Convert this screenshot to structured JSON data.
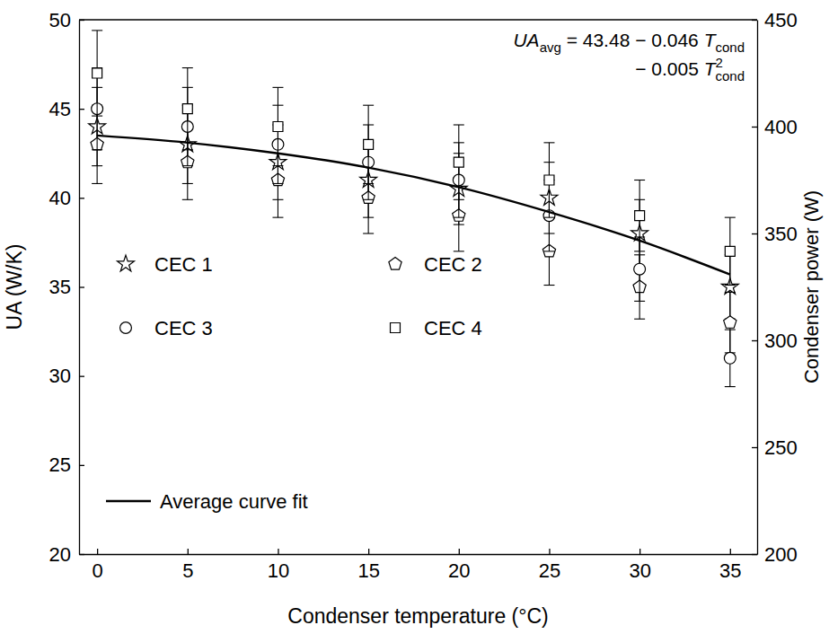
{
  "chart_data": {
    "type": "scatter",
    "x_label": "Condenser temperature (°C)",
    "y_label": "UA (W/K)",
    "y2_label": "Condenser power (W)",
    "x": [
      0,
      5,
      10,
      15,
      20,
      25,
      30,
      35
    ],
    "xlim": [
      -1,
      36.5
    ],
    "xticks": [
      0,
      5,
      10,
      15,
      20,
      25,
      30,
      35
    ],
    "ylim": [
      20,
      50
    ],
    "yticks": [
      20,
      25,
      30,
      35,
      40,
      45,
      50
    ],
    "y2lim": [
      200,
      450
    ],
    "y2ticks": [
      200,
      250,
      300,
      350,
      400,
      450
    ],
    "grid": false,
    "legend": "left",
    "annotation": [
      [
        {
          "t": "UA"
        },
        {
          "t": "avg",
          "style": "sub"
        },
        {
          "t": " = 43.48 − 0.046 "
        },
        {
          "t": "T"
        },
        {
          "t": "cond",
          "style": "sub"
        }
      ],
      [
        {
          "t": "− 0.005 "
        },
        {
          "t": "T"
        },
        {
          "t": "2",
          "style": "sup"
        },
        {
          "t": "cond",
          "style": "sub"
        }
      ]
    ],
    "series": [
      {
        "name": "CEC 1",
        "type": "scatter",
        "marker": "star",
        "color": "#000000",
        "values": [
          44,
          43,
          42,
          41,
          40.5,
          40,
          38,
          35
        ],
        "errors": [
          2.2,
          2.2,
          2.1,
          2.1,
          2.0,
          2.0,
          1.9,
          1.8
        ]
      },
      {
        "name": "CEC 2",
        "type": "scatter",
        "marker": "pentagon",
        "color": "#000000",
        "values": [
          43,
          42,
          41,
          40,
          39,
          37,
          35,
          33
        ],
        "errors": [
          2.2,
          2.1,
          2.1,
          2.0,
          2.0,
          1.9,
          1.8,
          1.7
        ]
      },
      {
        "name": "CEC 3",
        "type": "scatter",
        "marker": "circle",
        "color": "#000000",
        "values": [
          45,
          44,
          43,
          42,
          41,
          39,
          36,
          31
        ],
        "errors": [
          2.3,
          2.2,
          2.2,
          2.1,
          2.1,
          2.0,
          1.8,
          1.6
        ]
      },
      {
        "name": "CEC 4",
        "type": "scatter",
        "marker": "square",
        "color": "#000000",
        "values": [
          47,
          45,
          44,
          43,
          42,
          41,
          39,
          37
        ],
        "errors": [
          2.4,
          2.3,
          2.2,
          2.2,
          2.1,
          2.1,
          2.0,
          1.9
        ]
      },
      {
        "name": "Average curve fit",
        "type": "line",
        "line_style": "solid",
        "color": "#000000",
        "values": [
          43.5,
          43.1,
          42.5,
          41.7,
          40.6,
          39.2,
          37.6,
          35.7
        ]
      }
    ]
  }
}
